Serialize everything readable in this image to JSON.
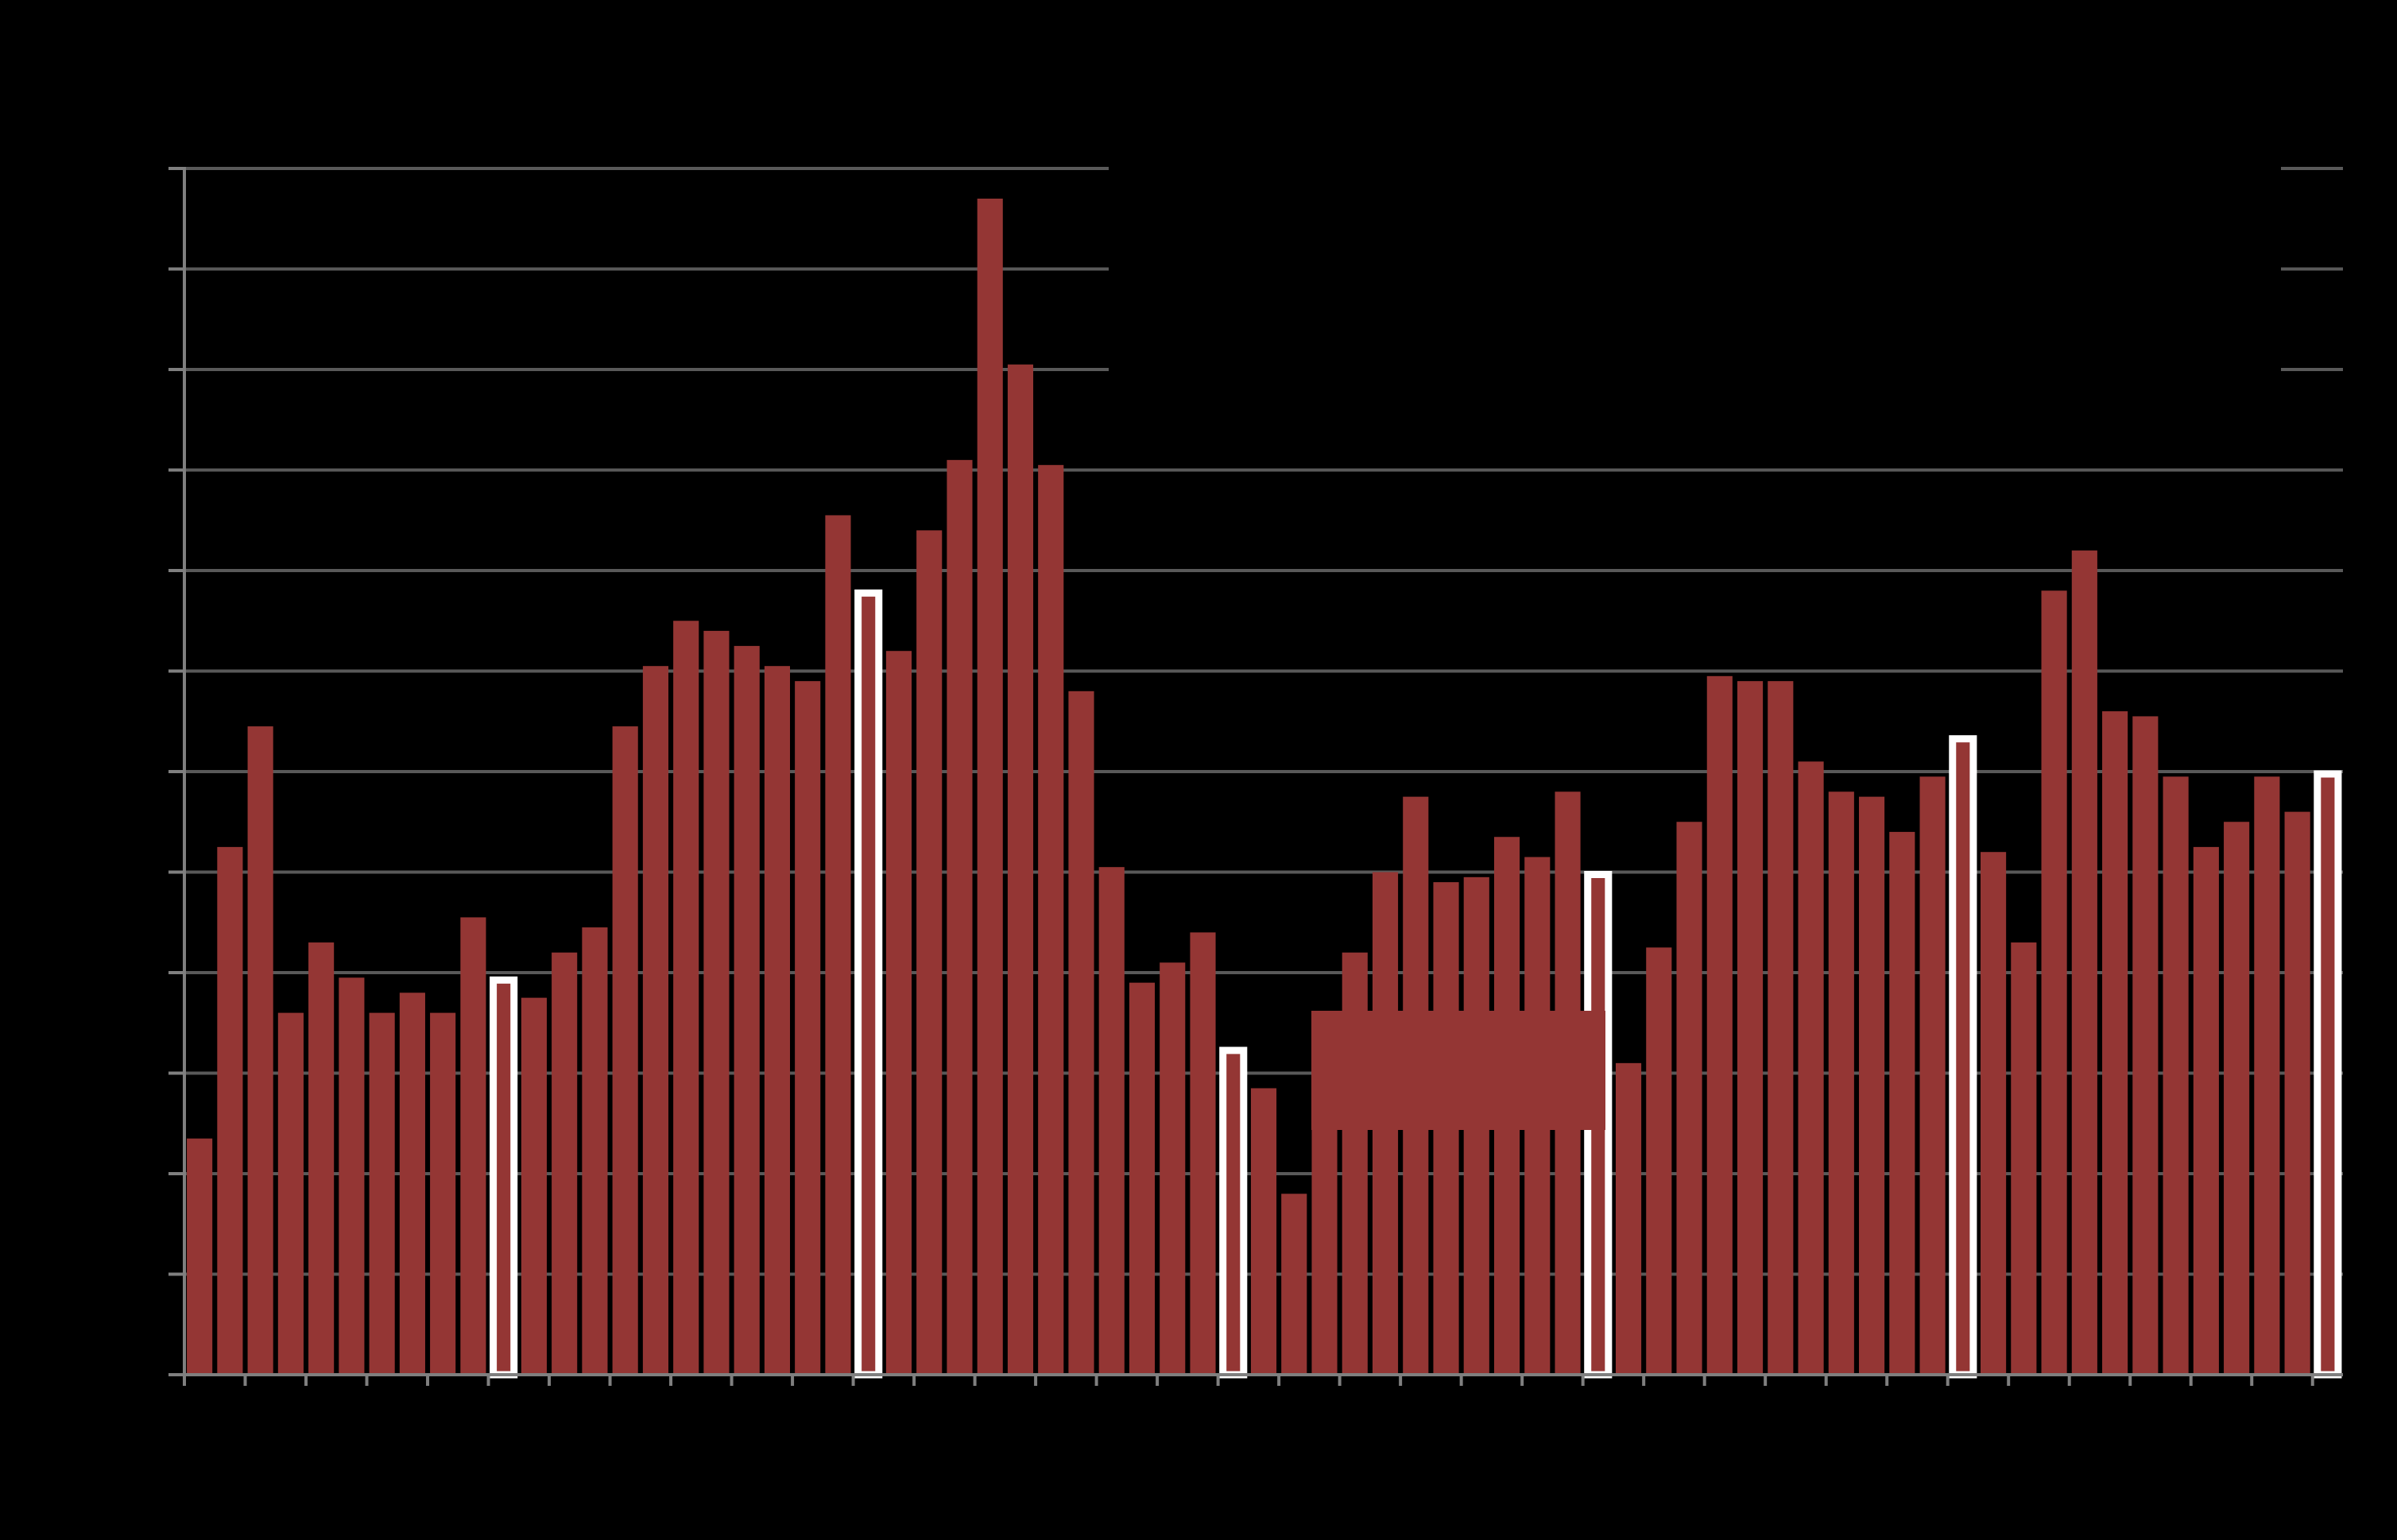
{
  "chart_data": {
    "type": "bar",
    "title": "",
    "xlabel": "",
    "ylabel": "",
    "ylim": [
      0,
      12
    ],
    "y_ticks": [
      0,
      1,
      2,
      3,
      4,
      5,
      6,
      7,
      8,
      9,
      10,
      11,
      12
    ],
    "grid": true,
    "legend": "none",
    "values": [
      2.35,
      5.25,
      6.45,
      3.6,
      4.3,
      3.95,
      3.6,
      3.8,
      3.6,
      4.55,
      3.95,
      3.75,
      4.2,
      4.45,
      6.45,
      7.05,
      7.5,
      7.4,
      7.25,
      7.05,
      6.9,
      8.55,
      7.8,
      7.2,
      8.4,
      9.1,
      11.7,
      10.05,
      9.05,
      6.8,
      5.05,
      3.9,
      4.1,
      4.4,
      3.25,
      2.85,
      1.8,
      3.5,
      4.2,
      5.0,
      5.75,
      4.9,
      4.95,
      5.35,
      5.15,
      5.8,
      5.0,
      3.1,
      4.25,
      5.5,
      6.95,
      6.9,
      6.9,
      6.1,
      5.8,
      5.75,
      5.4,
      5.95,
      6.35,
      5.2,
      4.3,
      7.8,
      8.2,
      6.6,
      6.55,
      5.95,
      5.25,
      5.5,
      5.95,
      5.6,
      6.0
    ],
    "highlighted_indices": [
      10,
      22,
      34,
      46,
      58,
      70
    ],
    "bar_color": "#943634",
    "highlight_fill": "#943634",
    "highlight_stroke": "#ffffff",
    "background_color": "#000000",
    "axis_color": "#7f7f7f",
    "grid_color": "#595959"
  }
}
